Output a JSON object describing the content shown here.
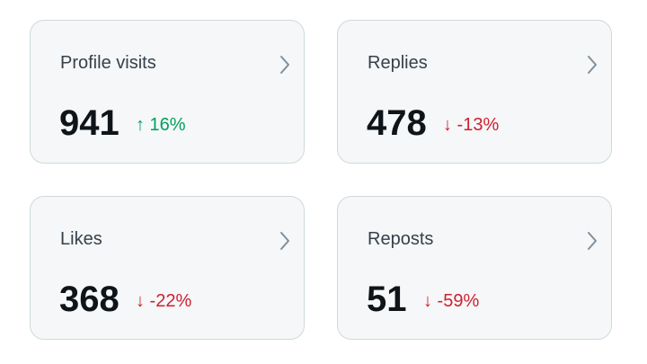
{
  "cards": [
    {
      "label": "Profile visits",
      "value": 941,
      "change": "↑ 16%",
      "color": "#00a05c"
    },
    {
      "label": "Replies",
      "value": 478,
      "change": "↓ -13%",
      "color": "#d0202f"
    },
    {
      "label": "Likes",
      "value": 368,
      "change": "↓ -22%",
      "color": "#d0202f"
    },
    {
      "label": "Reposts",
      "value": 51,
      "change": "↓ -59%",
      "color": "#d0202f"
    }
  ]
}
